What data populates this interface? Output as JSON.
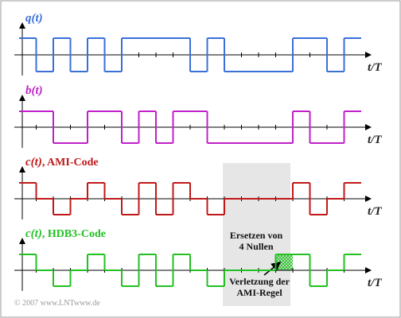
{
  "signals": [
    {
      "symbol": "q(t)",
      "color": "#3a6fd8",
      "values": [
        1,
        -1,
        1,
        -1,
        1,
        -1,
        1,
        1,
        1,
        1,
        -1,
        1,
        -1,
        -1,
        -1,
        -1,
        1,
        1,
        -1,
        1
      ]
    },
    {
      "symbol": "b(t)",
      "color": "#c020c8",
      "values": [
        1,
        1,
        0,
        0,
        1,
        1,
        0,
        1,
        0,
        1,
        1,
        0,
        0,
        0,
        0,
        0,
        1,
        0,
        0,
        1
      ]
    },
    {
      "symbol": "c(t)",
      "label": ", AMI-Code",
      "color": "#c01818",
      "values": [
        1,
        0,
        -1,
        0,
        1,
        0,
        -1,
        1,
        -1,
        1,
        0,
        -1,
        0,
        0,
        0,
        0,
        1,
        -1,
        0,
        1
      ]
    },
    {
      "symbol": "c(t)",
      "label": ", HDB3-Code",
      "color": "#22c022",
      "values": [
        1,
        0,
        -1,
        0,
        1,
        0,
        -1,
        1,
        -1,
        1,
        0,
        -1,
        0,
        0,
        0,
        1,
        1,
        -1,
        0,
        1
      ]
    }
  ],
  "axis_label": "t/T",
  "annotations": {
    "replace": [
      "Ersetzen von",
      "4 Nullen"
    ],
    "violation": [
      "Verletzung der",
      "AMI-Regel"
    ]
  },
  "copyright": "© 2007 www.LNTwww.de"
}
